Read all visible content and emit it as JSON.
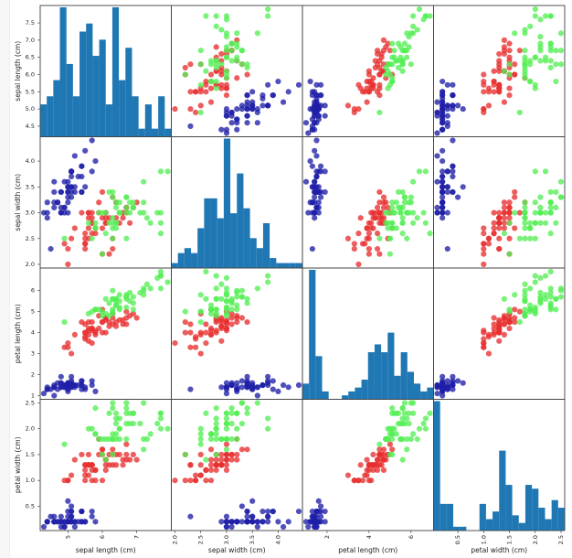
{
  "chart_data": {
    "type": "scatter_matrix",
    "variables": [
      {
        "key": "sl",
        "label": "sepal length (cm)",
        "range": [
          4.3,
          7.9
        ],
        "ticks": [
          "4.5",
          "5.0",
          "5.5",
          "6.0",
          "6.5",
          "7.0",
          "7.5"
        ],
        "xticks": [
          "5",
          "6",
          "7"
        ]
      },
      {
        "key": "sw",
        "label": "sepal width (cm)",
        "range": [
          2.0,
          4.4
        ],
        "ticks": [
          "2.0",
          "2.5",
          "3.0",
          "3.5",
          "4.0"
        ],
        "xticks": [
          "2.0",
          "2.5",
          "3.0",
          "3.5",
          "4.0"
        ]
      },
      {
        "key": "pl",
        "label": "petal length (cm)",
        "range": [
          1.0,
          6.9
        ],
        "ticks": [
          "1",
          "2",
          "3",
          "4",
          "5",
          "6"
        ],
        "xticks": [
          "2",
          "4",
          "6"
        ]
      },
      {
        "key": "pw",
        "label": "petal width (cm)",
        "range": [
          0.1,
          2.5
        ],
        "ticks": [
          "0.5",
          "1.0",
          "1.5",
          "2.0",
          "2.5"
        ],
        "xticks": [
          "0.5",
          "1.0",
          "1.5",
          "2.0",
          "2.5"
        ]
      }
    ],
    "class_colors": [
      "#1f1fa8",
      "#e83030",
      "#55ee55"
    ],
    "hist_color": "#1f77b4",
    "data": [
      [
        5.1,
        3.5,
        1.4,
        0.2,
        0
      ],
      [
        4.9,
        3.0,
        1.4,
        0.2,
        0
      ],
      [
        4.7,
        3.2,
        1.3,
        0.2,
        0
      ],
      [
        4.6,
        3.1,
        1.5,
        0.2,
        0
      ],
      [
        5.0,
        3.6,
        1.4,
        0.2,
        0
      ],
      [
        5.4,
        3.9,
        1.7,
        0.4,
        0
      ],
      [
        4.6,
        3.4,
        1.4,
        0.3,
        0
      ],
      [
        5.0,
        3.4,
        1.5,
        0.2,
        0
      ],
      [
        4.4,
        2.9,
        1.4,
        0.2,
        0
      ],
      [
        4.9,
        3.1,
        1.5,
        0.1,
        0
      ],
      [
        5.4,
        3.7,
        1.5,
        0.2,
        0
      ],
      [
        4.8,
        3.4,
        1.6,
        0.2,
        0
      ],
      [
        4.8,
        3.0,
        1.4,
        0.1,
        0
      ],
      [
        4.3,
        3.0,
        1.1,
        0.1,
        0
      ],
      [
        5.8,
        4.0,
        1.2,
        0.2,
        0
      ],
      [
        5.7,
        4.4,
        1.5,
        0.4,
        0
      ],
      [
        5.4,
        3.9,
        1.3,
        0.4,
        0
      ],
      [
        5.1,
        3.5,
        1.4,
        0.3,
        0
      ],
      [
        5.7,
        3.8,
        1.7,
        0.3,
        0
      ],
      [
        5.1,
        3.8,
        1.5,
        0.3,
        0
      ],
      [
        5.4,
        3.4,
        1.7,
        0.2,
        0
      ],
      [
        5.1,
        3.7,
        1.5,
        0.4,
        0
      ],
      [
        4.6,
        3.6,
        1.0,
        0.2,
        0
      ],
      [
        5.1,
        3.3,
        1.7,
        0.5,
        0
      ],
      [
        4.8,
        3.4,
        1.9,
        0.2,
        0
      ],
      [
        5.0,
        3.0,
        1.6,
        0.2,
        0
      ],
      [
        5.0,
        3.4,
        1.6,
        0.4,
        0
      ],
      [
        5.2,
        3.5,
        1.5,
        0.2,
        0
      ],
      [
        5.2,
        3.4,
        1.4,
        0.2,
        0
      ],
      [
        4.7,
        3.2,
        1.6,
        0.2,
        0
      ],
      [
        4.8,
        3.1,
        1.6,
        0.2,
        0
      ],
      [
        5.4,
        3.4,
        1.5,
        0.4,
        0
      ],
      [
        5.2,
        4.1,
        1.5,
        0.1,
        0
      ],
      [
        5.5,
        4.2,
        1.4,
        0.2,
        0
      ],
      [
        4.9,
        3.1,
        1.5,
        0.2,
        0
      ],
      [
        5.0,
        3.2,
        1.2,
        0.2,
        0
      ],
      [
        5.5,
        3.5,
        1.3,
        0.2,
        0
      ],
      [
        4.9,
        3.6,
        1.4,
        0.1,
        0
      ],
      [
        4.4,
        3.0,
        1.3,
        0.2,
        0
      ],
      [
        5.1,
        3.4,
        1.5,
        0.2,
        0
      ],
      [
        5.0,
        3.5,
        1.3,
        0.3,
        0
      ],
      [
        4.5,
        2.3,
        1.3,
        0.3,
        0
      ],
      [
        4.4,
        3.2,
        1.3,
        0.2,
        0
      ],
      [
        5.0,
        3.5,
        1.6,
        0.6,
        0
      ],
      [
        5.1,
        3.8,
        1.9,
        0.4,
        0
      ],
      [
        4.8,
        3.0,
        1.4,
        0.3,
        0
      ],
      [
        5.1,
        3.8,
        1.6,
        0.2,
        0
      ],
      [
        4.6,
        3.2,
        1.4,
        0.2,
        0
      ],
      [
        5.3,
        3.7,
        1.5,
        0.2,
        0
      ],
      [
        5.0,
        3.3,
        1.4,
        0.2,
        0
      ],
      [
        7.0,
        3.2,
        4.7,
        1.4,
        1
      ],
      [
        6.4,
        3.2,
        4.5,
        1.5,
        1
      ],
      [
        6.9,
        3.1,
        4.9,
        1.5,
        1
      ],
      [
        5.5,
        2.3,
        4.0,
        1.3,
        1
      ],
      [
        6.5,
        2.8,
        4.6,
        1.5,
        1
      ],
      [
        5.7,
        2.8,
        4.5,
        1.3,
        1
      ],
      [
        6.3,
        3.3,
        4.7,
        1.6,
        1
      ],
      [
        4.9,
        2.4,
        3.3,
        1.0,
        1
      ],
      [
        6.6,
        2.9,
        4.6,
        1.3,
        1
      ],
      [
        5.2,
        2.7,
        3.9,
        1.4,
        1
      ],
      [
        5.0,
        2.0,
        3.5,
        1.0,
        1
      ],
      [
        5.9,
        3.0,
        4.2,
        1.5,
        1
      ],
      [
        6.0,
        2.2,
        4.0,
        1.0,
        1
      ],
      [
        6.1,
        2.9,
        4.7,
        1.4,
        1
      ],
      [
        5.6,
        2.9,
        3.6,
        1.3,
        1
      ],
      [
        6.7,
        3.1,
        4.4,
        1.4,
        1
      ],
      [
        5.6,
        3.0,
        4.5,
        1.5,
        1
      ],
      [
        5.8,
        2.7,
        4.1,
        1.0,
        1
      ],
      [
        6.2,
        2.2,
        4.5,
        1.5,
        1
      ],
      [
        5.6,
        2.5,
        3.9,
        1.1,
        1
      ],
      [
        5.9,
        3.2,
        4.8,
        1.8,
        1
      ],
      [
        6.1,
        2.8,
        4.0,
        1.3,
        1
      ],
      [
        6.3,
        2.5,
        4.9,
        1.5,
        1
      ],
      [
        6.1,
        2.8,
        4.7,
        1.2,
        1
      ],
      [
        6.4,
        2.9,
        4.3,
        1.3,
        1
      ],
      [
        6.6,
        3.0,
        4.4,
        1.4,
        1
      ],
      [
        6.8,
        2.8,
        4.8,
        1.4,
        1
      ],
      [
        6.7,
        3.0,
        5.0,
        1.7,
        1
      ],
      [
        6.0,
        2.9,
        4.5,
        1.5,
        1
      ],
      [
        5.7,
        2.6,
        3.5,
        1.0,
        1
      ],
      [
        5.5,
        2.4,
        3.8,
        1.1,
        1
      ],
      [
        5.5,
        2.4,
        3.7,
        1.0,
        1
      ],
      [
        5.8,
        2.7,
        3.9,
        1.2,
        1
      ],
      [
        6.0,
        2.7,
        5.1,
        1.6,
        1
      ],
      [
        5.4,
        3.0,
        4.5,
        1.5,
        1
      ],
      [
        6.0,
        3.4,
        4.5,
        1.6,
        1
      ],
      [
        6.7,
        3.1,
        4.7,
        1.5,
        1
      ],
      [
        6.3,
        2.3,
        4.4,
        1.3,
        1
      ],
      [
        5.6,
        3.0,
        4.1,
        1.3,
        1
      ],
      [
        5.5,
        2.5,
        4.0,
        1.3,
        1
      ],
      [
        5.5,
        2.6,
        4.4,
        1.2,
        1
      ],
      [
        6.1,
        3.0,
        4.6,
        1.4,
        1
      ],
      [
        5.8,
        2.6,
        4.0,
        1.2,
        1
      ],
      [
        5.0,
        2.3,
        3.3,
        1.0,
        1
      ],
      [
        5.6,
        2.7,
        4.2,
        1.3,
        1
      ],
      [
        5.7,
        3.0,
        4.2,
        1.2,
        1
      ],
      [
        5.7,
        2.9,
        4.2,
        1.3,
        1
      ],
      [
        6.2,
        2.9,
        4.3,
        1.3,
        1
      ],
      [
        5.1,
        2.5,
        3.0,
        1.1,
        1
      ],
      [
        5.7,
        2.8,
        4.1,
        1.3,
        1
      ],
      [
        6.3,
        3.3,
        6.0,
        2.5,
        2
      ],
      [
        5.8,
        2.7,
        5.1,
        1.9,
        2
      ],
      [
        7.1,
        3.0,
        5.9,
        2.1,
        2
      ],
      [
        6.3,
        2.9,
        5.6,
        1.8,
        2
      ],
      [
        6.5,
        3.0,
        5.8,
        2.2,
        2
      ],
      [
        7.6,
        3.0,
        6.6,
        2.1,
        2
      ],
      [
        4.9,
        2.5,
        4.5,
        1.7,
        2
      ],
      [
        7.3,
        2.9,
        6.3,
        1.8,
        2
      ],
      [
        6.7,
        2.5,
        5.8,
        1.8,
        2
      ],
      [
        7.2,
        3.6,
        6.1,
        2.5,
        2
      ],
      [
        6.5,
        3.2,
        5.1,
        2.0,
        2
      ],
      [
        6.4,
        2.7,
        5.3,
        1.9,
        2
      ],
      [
        6.8,
        3.0,
        5.5,
        2.1,
        2
      ],
      [
        5.7,
        2.5,
        5.0,
        2.0,
        2
      ],
      [
        5.8,
        2.8,
        5.1,
        2.4,
        2
      ],
      [
        6.4,
        3.2,
        5.3,
        2.3,
        2
      ],
      [
        6.5,
        3.0,
        5.5,
        1.8,
        2
      ],
      [
        7.7,
        3.8,
        6.7,
        2.2,
        2
      ],
      [
        7.7,
        2.6,
        6.9,
        2.3,
        2
      ],
      [
        6.0,
        2.2,
        5.0,
        1.5,
        2
      ],
      [
        6.9,
        3.2,
        5.7,
        2.3,
        2
      ],
      [
        5.6,
        2.8,
        4.9,
        2.0,
        2
      ],
      [
        7.7,
        2.8,
        6.7,
        2.0,
        2
      ],
      [
        6.3,
        2.7,
        4.9,
        1.8,
        2
      ],
      [
        6.7,
        3.3,
        5.7,
        2.1,
        2
      ],
      [
        7.2,
        3.2,
        6.0,
        1.8,
        2
      ],
      [
        6.2,
        2.8,
        4.8,
        1.8,
        2
      ],
      [
        6.1,
        3.0,
        4.9,
        1.8,
        2
      ],
      [
        6.4,
        2.8,
        5.6,
        2.1,
        2
      ],
      [
        7.2,
        3.0,
        5.8,
        1.6,
        2
      ],
      [
        7.4,
        2.8,
        6.1,
        1.9,
        2
      ],
      [
        7.9,
        3.8,
        6.4,
        2.0,
        2
      ],
      [
        6.4,
        2.8,
        5.6,
        2.2,
        2
      ],
      [
        6.3,
        2.8,
        5.1,
        1.5,
        2
      ],
      [
        6.1,
        2.6,
        5.6,
        1.4,
        2
      ],
      [
        7.7,
        3.0,
        6.1,
        2.3,
        2
      ],
      [
        6.3,
        3.4,
        5.6,
        2.4,
        2
      ],
      [
        6.4,
        3.1,
        5.5,
        1.8,
        2
      ],
      [
        6.0,
        3.0,
        4.8,
        1.8,
        2
      ],
      [
        6.9,
        3.1,
        5.4,
        2.1,
        2
      ],
      [
        6.7,
        3.1,
        5.6,
        2.4,
        2
      ],
      [
        6.9,
        3.1,
        5.1,
        2.3,
        2
      ],
      [
        5.8,
        2.7,
        5.1,
        1.9,
        2
      ],
      [
        6.8,
        3.2,
        5.9,
        2.3,
        2
      ],
      [
        6.7,
        3.3,
        5.7,
        2.5,
        2
      ],
      [
        6.7,
        3.0,
        5.2,
        2.3,
        2
      ],
      [
        6.3,
        2.5,
        5.0,
        1.9,
        2
      ],
      [
        6.5,
        3.0,
        5.2,
        2.0,
        2
      ],
      [
        6.2,
        3.4,
        5.4,
        2.3,
        2
      ],
      [
        5.9,
        3.0,
        5.1,
        1.8,
        2
      ]
    ],
    "bins": 20,
    "grid": false
  }
}
